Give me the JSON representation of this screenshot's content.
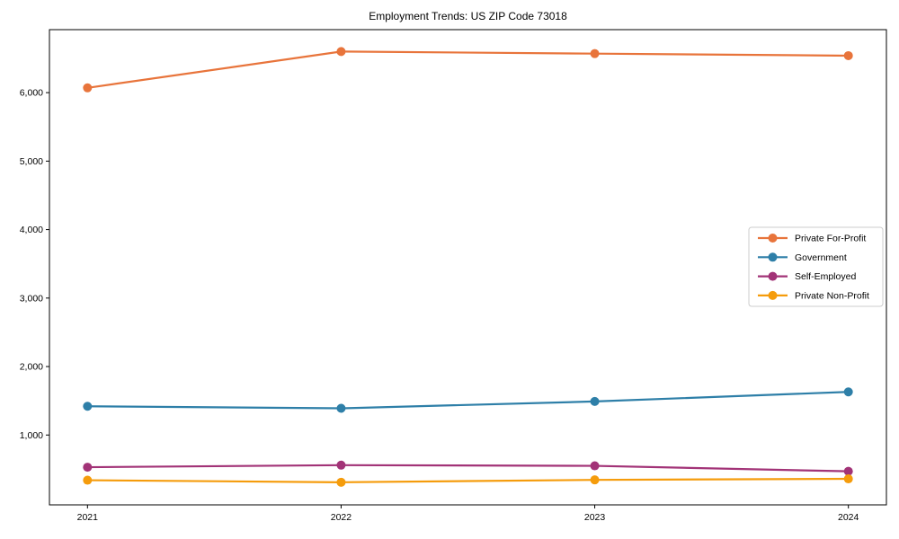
{
  "figure": {
    "background": "#ffffff"
  },
  "chart_data": {
    "type": "line",
    "title": "Employment Trends: US ZIP Code 73018",
    "x": [
      2021,
      2022,
      2023,
      2024
    ],
    "x_tick_labels": [
      "2021",
      "2022",
      "2023",
      "2024"
    ],
    "y_ticks": [
      1000,
      2000,
      3000,
      4000,
      5000,
      6000
    ],
    "y_tick_labels": [
      "1,000",
      "2,000",
      "3,000",
      "4,000",
      "5,000",
      "6,000"
    ],
    "ylim": [
      -20,
      6920
    ],
    "grid": false,
    "legend_position": "center right",
    "marker": "circle",
    "axis_color": "#000000",
    "legend_border_color": "#cccccc",
    "series": [
      {
        "name": "Private For-Profit",
        "color": "#E8743B",
        "values": [
          6070,
          6600,
          6570,
          6540
        ]
      },
      {
        "name": "Government",
        "color": "#2E7FA8",
        "values": [
          1420,
          1390,
          1490,
          1630
        ]
      },
      {
        "name": "Self-Employed",
        "color": "#A23377",
        "values": [
          530,
          560,
          550,
          470
        ]
      },
      {
        "name": "Private Non-Profit",
        "color": "#F59C0C",
        "values": [
          340,
          310,
          345,
          360
        ]
      }
    ]
  }
}
